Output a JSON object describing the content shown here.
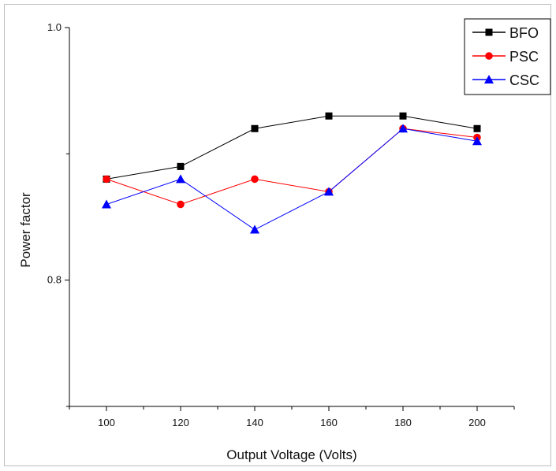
{
  "chart_data": {
    "type": "line",
    "xlabel": "Output Voltage (Volts)",
    "ylabel": "Power factor",
    "x": [
      100,
      120,
      140,
      160,
      180,
      200
    ],
    "xticks": [
      100,
      120,
      140,
      160,
      180,
      200
    ],
    "xlim": [
      90,
      210
    ],
    "ylim": [
      0.7,
      1.0
    ],
    "yticks_labeled": [
      "0.8",
      "1.0"
    ],
    "grid": false,
    "legend_position": "top-right",
    "series": [
      {
        "name": "BFO",
        "color": "#000000",
        "marker": "square",
        "values": [
          0.88,
          0.89,
          0.92,
          0.93,
          0.93,
          0.92
        ]
      },
      {
        "name": "PSC",
        "color": "#ff0000",
        "marker": "circle",
        "values": [
          0.88,
          0.86,
          0.88,
          0.87,
          0.92,
          0.913
        ]
      },
      {
        "name": "CSC",
        "color": "#0000ff",
        "marker": "triangle",
        "values": [
          0.86,
          0.88,
          0.84,
          0.87,
          0.92,
          0.91
        ]
      }
    ]
  }
}
